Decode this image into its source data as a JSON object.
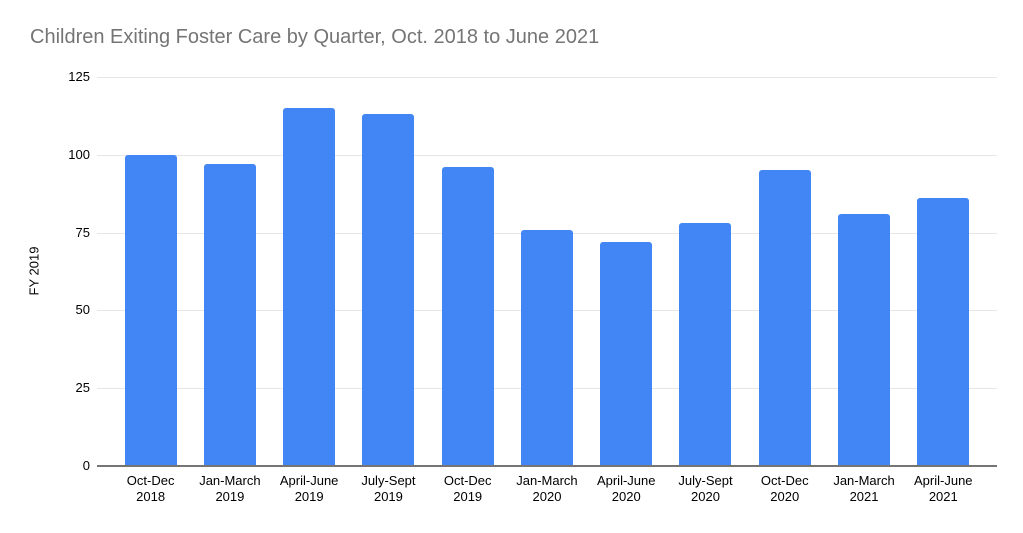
{
  "chart_data": {
    "type": "bar",
    "title": "Children Exiting Foster Care by Quarter, Oct. 2018 to June 2021",
    "xlabel": "",
    "ylabel": "FY 2019",
    "categories": [
      "Oct-Dec\n2018",
      "Jan-March\n2019",
      "April-June\n2019",
      "July-Sept\n2019",
      "Oct-Dec\n2019",
      "Jan-March\n2020",
      "April-June\n2020",
      "July-Sept\n2020",
      "Oct-Dec\n2020",
      "Jan-March\n2021",
      "April-June\n2021"
    ],
    "values": [
      100,
      97,
      115,
      113,
      96,
      76,
      72,
      78,
      95,
      81,
      86
    ],
    "ylim": [
      0,
      125
    ],
    "yticks": [
      0,
      25,
      50,
      75,
      100,
      125
    ],
    "grid": true,
    "legend_position": "none",
    "bar_color": "#4285F4",
    "gridline_color": "#e6e6e6",
    "axis_line_color": "#757575",
    "title_color": "#757575",
    "tick_label_color": "#000000"
  }
}
